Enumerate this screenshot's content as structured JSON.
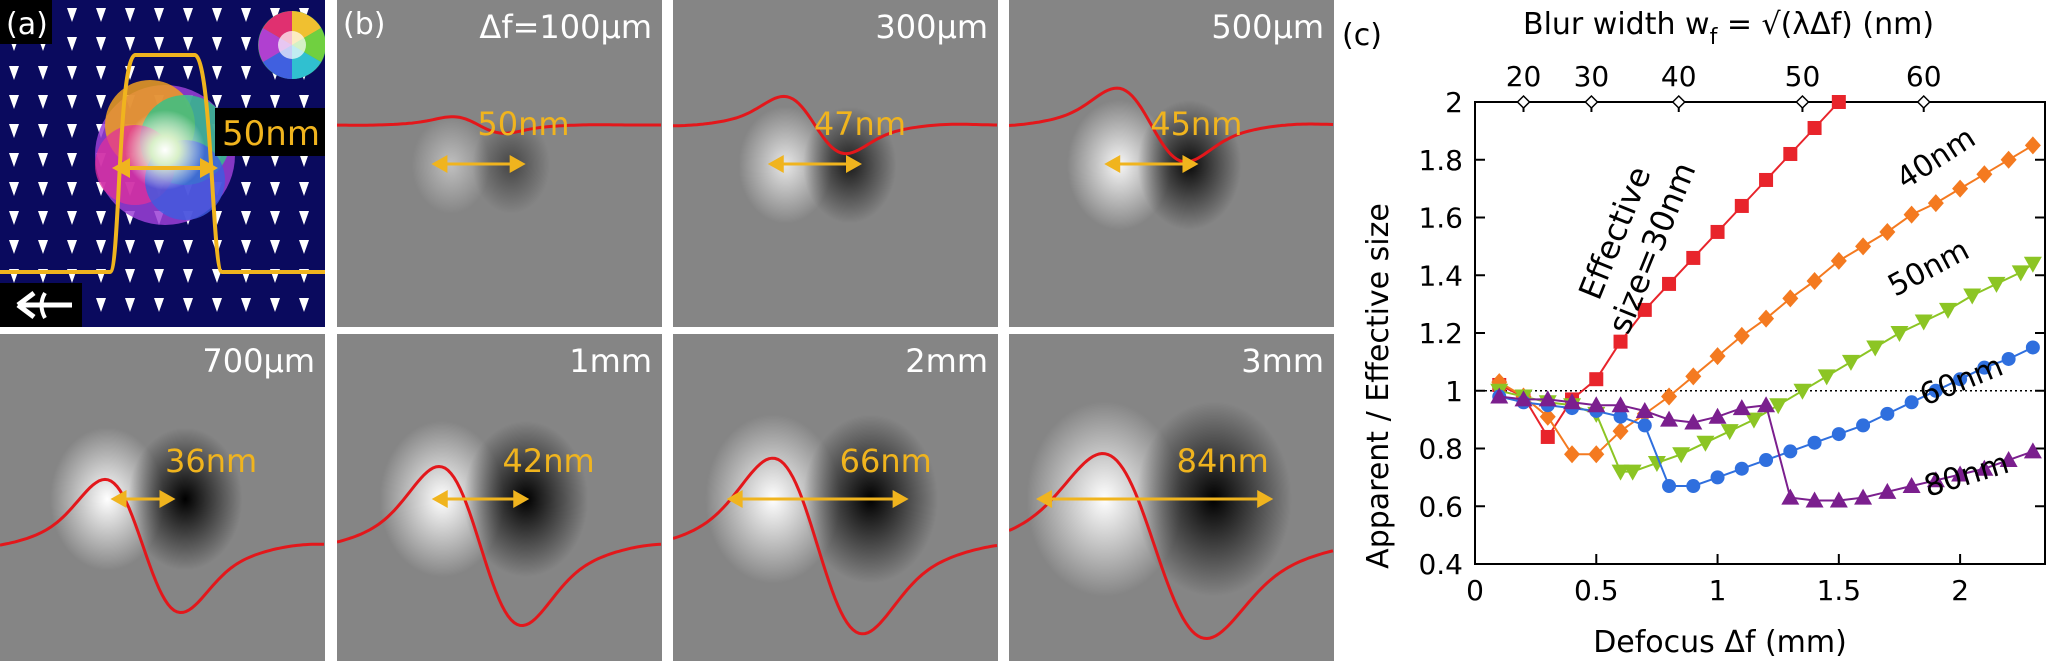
{
  "panel_a": {
    "label": "(a)",
    "size_label": "50nm"
  },
  "panel_b": {
    "label": "(b)",
    "tiles": [
      {
        "defocus": "Δf=100μm",
        "size": "50nm",
        "amp": 0.13,
        "sep": 0.31,
        "sigma": 0.075,
        "arrow_span": 0.29,
        "label_pos": "high"
      },
      {
        "defocus": "300μm",
        "size": "47nm",
        "amp": 0.45,
        "sep": 0.33,
        "sigma": 0.09,
        "arrow_span": 0.29,
        "label_pos": "high"
      },
      {
        "defocus": "500μm",
        "size": "45nm",
        "amp": 0.58,
        "sep": 0.36,
        "sigma": 0.1,
        "arrow_span": 0.29,
        "label_pos": "high"
      },
      {
        "defocus": "700μm",
        "size": "36nm",
        "amp": 0.72,
        "sep": 0.4,
        "sigma": 0.11,
        "arrow_span": 0.2,
        "label_pos": "mid"
      },
      {
        "defocus": "1mm",
        "size": "42nm",
        "amp": 0.86,
        "sep": 0.43,
        "sigma": 0.12,
        "arrow_span": 0.3,
        "label_pos": "mid"
      },
      {
        "defocus": "2mm",
        "size": "66nm",
        "amp": 0.95,
        "sep": 0.5,
        "sigma": 0.13,
        "arrow_span": 0.56,
        "label_pos": "mid"
      },
      {
        "defocus": "3mm",
        "size": "84nm",
        "amp": 1.0,
        "sep": 0.56,
        "sigma": 0.15,
        "arrow_span": 0.73,
        "label_pos": "mid"
      }
    ]
  },
  "panel_c": {
    "label": "(c)",
    "top_axis_title": "Blur width w",
    "top_axis_sub": "f",
    "top_axis_rest": " = √(λΔf) (nm)",
    "top_ticks": [
      "20",
      "30",
      "40",
      "50",
      "60"
    ],
    "inline_labels": {
      "effective_line1": "Effective",
      "effective_line2": "size=30nm",
      "s40": "40nm",
      "s50": "50nm",
      "s60": "60nm",
      "s80": "80nm"
    }
  },
  "chart_data": {
    "type": "line",
    "xlabel": "Defocus Δf (mm)",
    "ylabel": "Apparent / Effective size",
    "xlim": [
      0,
      2.35
    ],
    "ylim": [
      0.4,
      2.0
    ],
    "xticks": [
      "0",
      "0.5",
      "1",
      "1.5",
      "2"
    ],
    "yticks": [
      "0.4",
      "0.6",
      "0.8",
      "1",
      "1.2",
      "1.4",
      "1.6",
      "1.8",
      "2"
    ],
    "reference_line": 1.0,
    "top_axis_ticks": [
      {
        "label": "20",
        "x": 0.2
      },
      {
        "label": "30",
        "x": 0.48
      },
      {
        "label": "40",
        "x": 0.84
      },
      {
        "label": "50",
        "x": 1.35
      },
      {
        "label": "60",
        "x": 1.85
      }
    ],
    "series": [
      {
        "label_key": "effective_size_30nm",
        "color": "#e8242b",
        "marker": "square",
        "x": [
          0.1,
          0.2,
          0.3,
          0.4,
          0.5,
          0.6,
          0.7,
          0.8,
          0.9,
          1.0,
          1.1,
          1.2,
          1.3,
          1.4,
          1.5
        ],
        "y": [
          1.02,
          0.98,
          0.84,
          0.97,
          1.04,
          1.17,
          1.28,
          1.37,
          1.46,
          1.55,
          1.64,
          1.73,
          1.82,
          1.91,
          2.0
        ]
      },
      {
        "label_key": "40nm",
        "color": "#f47a20",
        "marker": "diamond",
        "x": [
          0.1,
          0.2,
          0.3,
          0.4,
          0.5,
          0.6,
          0.7,
          0.8,
          0.9,
          1.0,
          1.1,
          1.2,
          1.3,
          1.4,
          1.5,
          1.6,
          1.7,
          1.8,
          1.9,
          2.0,
          2.1,
          2.2,
          2.3
        ],
        "y": [
          1.03,
          0.98,
          0.91,
          0.78,
          0.78,
          0.86,
          0.92,
          0.98,
          1.05,
          1.12,
          1.19,
          1.25,
          1.32,
          1.38,
          1.45,
          1.5,
          1.55,
          1.61,
          1.65,
          1.7,
          1.75,
          1.8,
          1.85
        ]
      },
      {
        "label_key": "50nm",
        "color": "#8cc524",
        "marker": "triangle-down",
        "x": [
          0.1,
          0.2,
          0.3,
          0.4,
          0.5,
          0.6,
          0.65,
          0.75,
          0.85,
          0.95,
          1.05,
          1.15,
          1.25,
          1.35,
          1.45,
          1.55,
          1.65,
          1.75,
          1.85,
          1.95,
          2.05,
          2.15,
          2.25,
          2.3
        ],
        "y": [
          1.0,
          0.98,
          0.96,
          0.95,
          0.92,
          0.72,
          0.72,
          0.75,
          0.78,
          0.82,
          0.86,
          0.9,
          0.95,
          1.0,
          1.05,
          1.1,
          1.15,
          1.2,
          1.24,
          1.28,
          1.33,
          1.37,
          1.41,
          1.44
        ]
      },
      {
        "label_key": "60nm",
        "color": "#2f6fde",
        "marker": "circle",
        "x": [
          0.1,
          0.2,
          0.3,
          0.4,
          0.5,
          0.6,
          0.7,
          0.8,
          0.9,
          1.0,
          1.1,
          1.2,
          1.3,
          1.4,
          1.5,
          1.6,
          1.7,
          1.8,
          1.9,
          2.0,
          2.1,
          2.2,
          2.3
        ],
        "y": [
          0.98,
          0.96,
          0.95,
          0.94,
          0.93,
          0.91,
          0.88,
          0.67,
          0.67,
          0.7,
          0.73,
          0.76,
          0.79,
          0.82,
          0.85,
          0.88,
          0.92,
          0.96,
          1.0,
          1.04,
          1.08,
          1.11,
          1.15
        ]
      },
      {
        "label_key": "80nm",
        "color": "#7b1f8e",
        "marker": "triangle-up",
        "x": [
          0.1,
          0.2,
          0.3,
          0.4,
          0.5,
          0.6,
          0.7,
          0.8,
          0.9,
          1.0,
          1.1,
          1.2,
          1.3,
          1.4,
          1.5,
          1.6,
          1.7,
          1.8,
          1.9,
          2.0,
          2.1,
          2.2,
          2.3
        ],
        "y": [
          0.98,
          0.97,
          0.97,
          0.96,
          0.95,
          0.95,
          0.93,
          0.9,
          0.89,
          0.91,
          0.94,
          0.95,
          0.63,
          0.62,
          0.62,
          0.63,
          0.65,
          0.67,
          0.69,
          0.71,
          0.73,
          0.76,
          0.79
        ]
      }
    ]
  }
}
